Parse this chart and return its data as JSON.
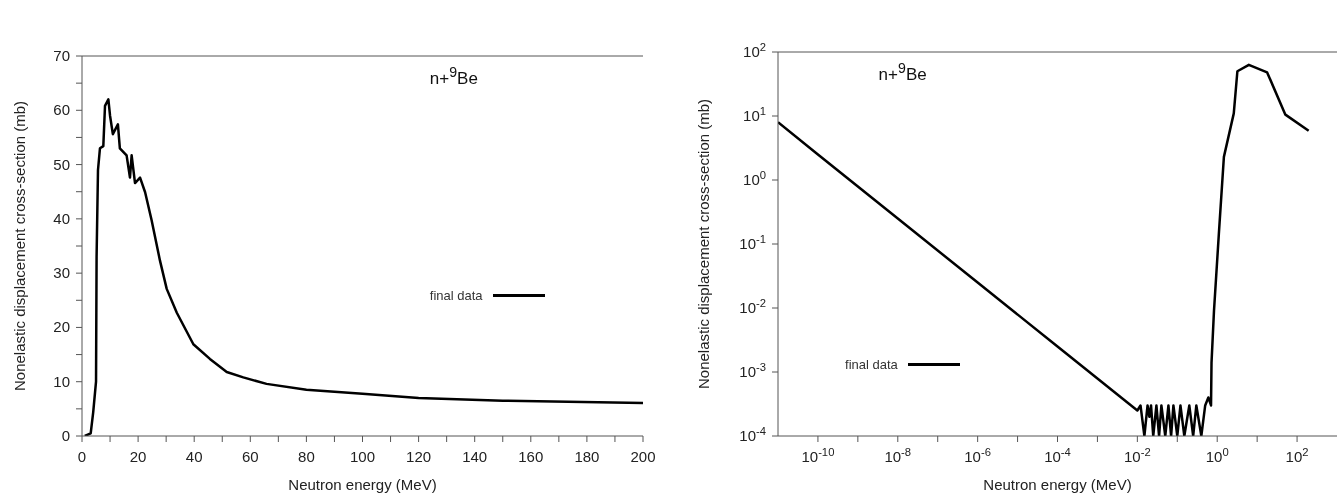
{
  "chart_data": [
    {
      "type": "line",
      "xlabel": "Neutron energy (MeV)",
      "ylabel": "Nonelastic displacement cross-section (mb)",
      "annotations": [
        "n+$^{9}$Be"
      ],
      "xlim": [
        0,
        200
      ],
      "xticks": [
        0,
        {
          "value": 10,
          "label": null
        },
        20,
        {
          "value": 30,
          "label": null
        },
        40,
        {
          "value": 50,
          "label": null
        },
        60,
        {
          "value": 70,
          "label": null
        },
        80,
        {
          "value": 90,
          "label": null
        },
        100,
        {
          "value": 110,
          "label": null
        },
        120,
        {
          "value": 130,
          "label": null
        },
        140,
        {
          "value": 150,
          "label": null
        },
        160,
        {
          "value": 170,
          "label": null
        },
        180,
        {
          "value": 190,
          "label": null
        },
        200
      ],
      "ylim": [
        0,
        70
      ],
      "yticks": [
        0,
        {
          "value": 5,
          "label": null
        },
        10,
        {
          "value": 15,
          "label": null
        },
        20,
        {
          "value": 25,
          "label": null
        },
        30,
        {
          "value": 35,
          "label": null
        },
        40,
        {
          "value": 45,
          "label": null
        },
        50,
        {
          "value": 55,
          "label": null
        },
        60,
        {
          "value": 65,
          "label": null
        },
        70
      ],
      "grid": false,
      "legend": "right",
      "marker": "none",
      "line_style": "solid",
      "series": [
        {
          "name": "final data",
          "color": "#000000",
          "x": [
            1,
            3.1,
            4,
            5,
            5.2,
            5.7,
            6.4,
            7.6,
            8.2,
            9.4,
            10,
            11,
            12.8,
            13.5,
            15.9,
            17.1,
            17.7,
            18.9,
            20.7,
            22.5,
            24.8,
            27.8,
            30.2,
            33.8,
            39.7,
            45.6,
            51.6,
            57.5,
            65.8,
            80,
            100,
            120,
            150,
            200
          ],
          "values": [
            0,
            0.5,
            4.4,
            10,
            33,
            49,
            53,
            53.4,
            60.8,
            62,
            59,
            55.6,
            57.4,
            53,
            51.7,
            47.6,
            51.7,
            46.6,
            47.6,
            44.9,
            39.8,
            32.3,
            27.1,
            22.7,
            16.9,
            14.2,
            11.8,
            10.8,
            9.6,
            8.5,
            7.8,
            7,
            6.5,
            6.1
          ]
        }
      ]
    },
    {
      "type": "line",
      "xlabel": "Neutron energy (MeV)",
      "ylabel": "Nonelastic displacement cross-section (mb)",
      "annotations": [
        "n+$^{9}$Be"
      ],
      "log": "xy",
      "xlim": [
        1e-11,
        1000
      ],
      "xticks": [
        {
          "value": 1e-10,
          "label": "10$^{-10}$"
        },
        {
          "value": 1e-09,
          "label": null
        },
        {
          "value": 1e-08,
          "label": "10$^{-8}$"
        },
        {
          "value": 1e-07,
          "label": null
        },
        {
          "value": 1e-06,
          "label": "10$^{-6}$"
        },
        {
          "value": 1e-05,
          "label": null
        },
        {
          "value": 0.0001,
          "label": "10$^{-4}$"
        },
        {
          "value": 0.001,
          "label": null
        },
        {
          "value": 0.01,
          "label": "10$^{-2}$"
        },
        {
          "value": 0.1,
          "label": null
        },
        {
          "value": 1,
          "label": "10$^{0}$"
        },
        {
          "value": 10,
          "label": null
        },
        {
          "value": 100,
          "label": "10$^{2}$"
        }
      ],
      "ylim": [
        0.0001,
        100
      ],
      "yticks": [
        {
          "value": 0.0001,
          "label": "10$^{-4}$"
        },
        {
          "value": 0.001,
          "label": "10$^{-3}$"
        },
        {
          "value": 0.01,
          "label": "10$^{-2}$"
        },
        {
          "value": 0.1,
          "label": "10$^{-1}$"
        },
        {
          "value": 1,
          "label": "10$^{0}$"
        },
        {
          "value": 10,
          "label": "10$^{1}$"
        },
        {
          "value": 100,
          "label": "10$^{2}$"
        }
      ],
      "grid": false,
      "legend": "bottom left",
      "marker": "none",
      "line_style": "solid",
      "series": [
        {
          "name": "final data",
          "color": "#000000",
          "x": [
            1e-11,
            1e-10,
            1e-08,
            1e-06,
            0.0001,
            0.01,
            0.012,
            0.015,
            0.018,
            0.02,
            0.022,
            0.025,
            0.03,
            0.035,
            0.04,
            0.05,
            0.06,
            0.07,
            0.08,
            0.1,
            0.12,
            0.15,
            0.2,
            0.25,
            0.3,
            0.4,
            0.5,
            0.6,
            0.7,
            0.72,
            0.83,
            1.1,
            1.47,
            2.6,
            3.2,
            6.2,
            17.8,
            51,
            195
          ],
          "values": [
            8,
            2.5,
            0.25,
            0.025,
            0.0025,
            0.00025,
            0.0003,
            0.0001,
            0.0003,
            0.0002,
            0.0003,
            0.0001,
            0.0003,
            0.0001,
            0.0003,
            0.0001,
            0.0003,
            0.0001,
            0.0003,
            0.0001,
            0.0003,
            0.0001,
            0.0003,
            0.0001,
            0.0003,
            0.0001,
            0.0003,
            0.0004,
            0.0003,
            0.0014,
            0.009,
            0.145,
            2.3,
            11,
            50,
            63,
            48,
            10.5,
            5.9
          ]
        }
      ]
    }
  ]
}
